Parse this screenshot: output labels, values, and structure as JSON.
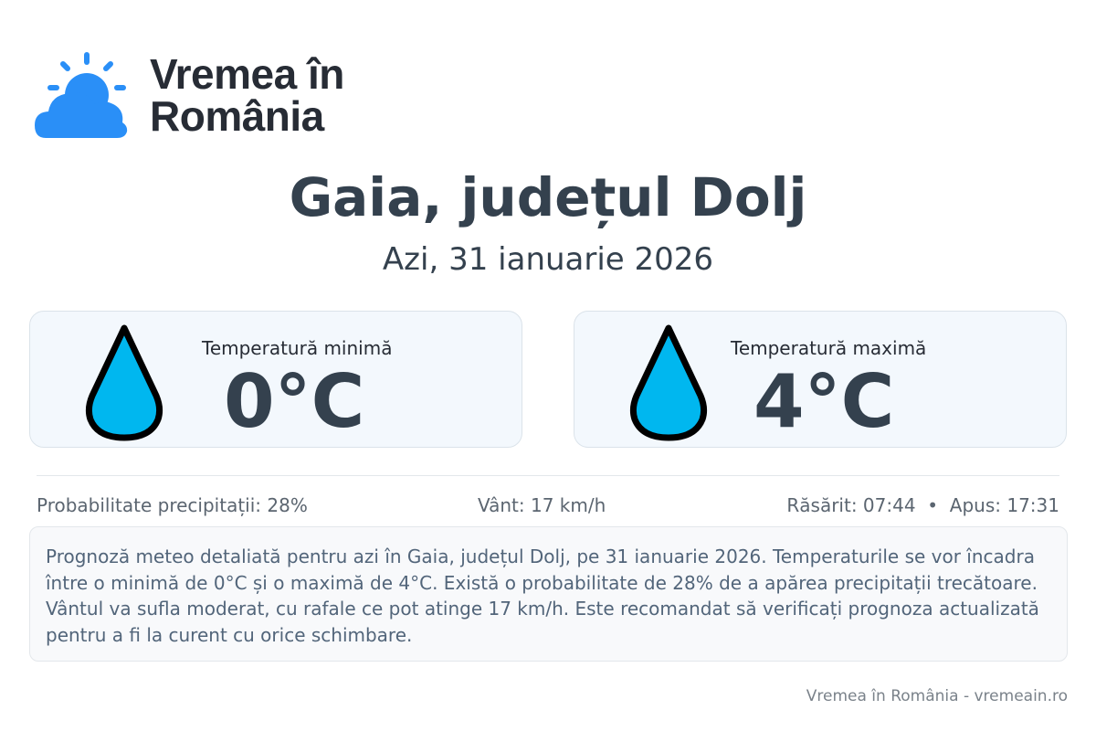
{
  "logo": {
    "line1": "Vremea în",
    "line2": "România",
    "brand_color": "#2a8ff7"
  },
  "title": "Gaia, județul Dolj",
  "date": "Azi, 31 ianuarie 2026",
  "cards": [
    {
      "label": "Temperatură minimă",
      "value": "0°C",
      "icon": "water-drop-icon"
    },
    {
      "label": "Temperatură maximă",
      "value": "4°C",
      "icon": "water-drop-icon"
    }
  ],
  "stats": {
    "precip": "Probabilitate precipitații: 28%",
    "wind": "Vânt: 17 km/h",
    "sun": "Răsărit: 07:44  •  Apus: 17:31"
  },
  "description": "Prognoză meteo detaliată pentru azi în Gaia, județul Dolj, pe 31 ianuarie 2026. Temperaturile se vor încadra între o minimă de 0°C și o maximă de 4°C. Există o probabilitate de 28% de a apărea precipitații trecătoare. Vântul va sufla moderat, cu rafale ce pot atinge 17 km/h. Este recomandat să verificați prognoza actualizată pentru a fi la curent cu orice schimbare.",
  "footer": "Vremea în România - vremeain.ro"
}
